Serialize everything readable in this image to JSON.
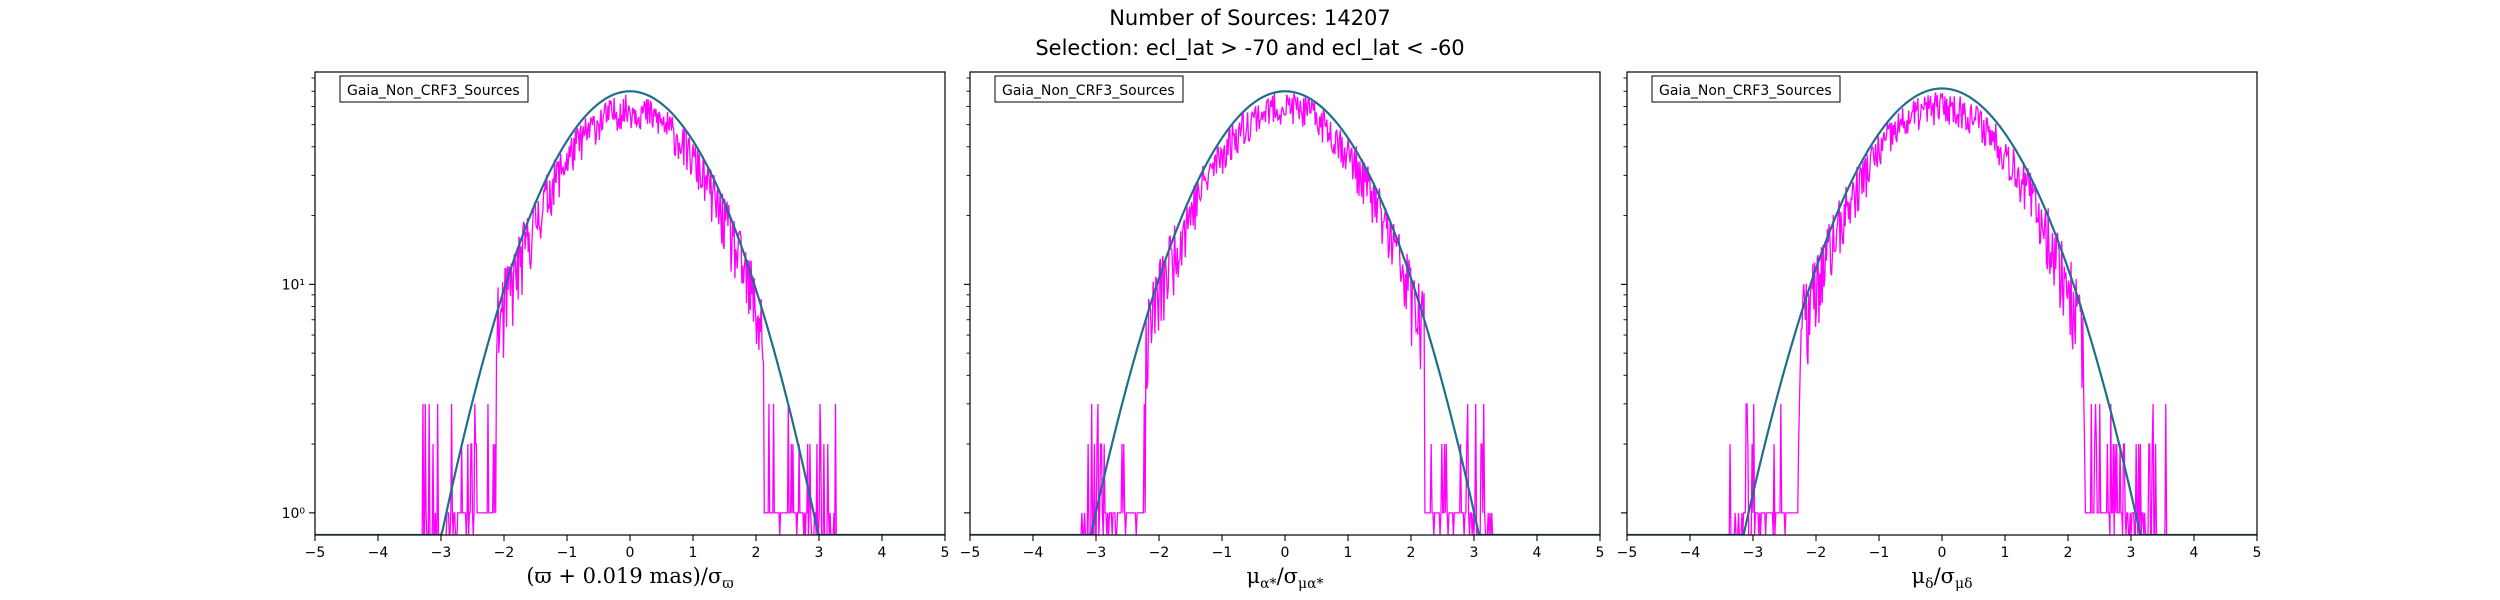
{
  "figure": {
    "title_line1": "Number of Sources: 14207",
    "title_line2": "Selection: ecl_lat > -70 and ecl_lat < -60"
  },
  "colors": {
    "histogram": "#ff00ff",
    "fit_curve": "#1f6f8b",
    "axes": "#000000",
    "background": "#ffffff"
  },
  "chart_data": [
    {
      "type": "histogram-line",
      "legend": "Gaia_Non_CRF3_Sources",
      "legend_position": "top-left",
      "xlabel_main": "(ϖ + 0.019 mas)/σ",
      "xlabel_sub": "ϖ",
      "xlim": [
        -5,
        5
      ],
      "ylim": [
        0.8,
        85
      ],
      "yscale": "log",
      "xticks": [
        -5,
        -4,
        -3,
        -2,
        -1,
        0,
        1,
        2,
        3,
        4,
        5
      ],
      "yticks": [
        {
          "value": 1,
          "label": "10⁰"
        },
        {
          "value": 10,
          "label": "10¹"
        }
      ],
      "fit": {
        "amplitude": 70,
        "mean": 0.0,
        "sigma": 1.0
      },
      "histogram": {
        "amplitude": 58,
        "mean": 0.0,
        "sigma": 1.0,
        "range": [
          -4.3,
          4.3
        ],
        "seed": 11
      }
    },
    {
      "type": "histogram-line",
      "legend": "Gaia_Non_CRF3_Sources",
      "legend_position": "top-left",
      "xlabel_main": "μ",
      "xlabel_sub": "α*",
      "xlabel_mid": "/σ",
      "xlabel_sub2": "μα*",
      "xlim": [
        -5,
        5
      ],
      "ylim": [
        0.8,
        85
      ],
      "yscale": "log",
      "xticks": [
        -5,
        -4,
        -3,
        -2,
        -1,
        0,
        1,
        2,
        3,
        4,
        5
      ],
      "yticks": [
        {
          "value": 1,
          "label": ""
        },
        {
          "value": 10,
          "label": ""
        }
      ],
      "fit": {
        "amplitude": 70,
        "mean": 0.0,
        "sigma": 1.03
      },
      "histogram": {
        "amplitude": 60,
        "mean": 0.0,
        "sigma": 1.03,
        "range": [
          -4.9,
          5.0
        ],
        "seed": 23
      }
    },
    {
      "type": "histogram-line",
      "legend": "Gaia_Non_CRF3_Sources",
      "legend_position": "top-left",
      "xlabel_main": "μ",
      "xlabel_sub": "δ",
      "xlabel_mid": "/σ",
      "xlabel_sub2": "μδ",
      "xlim": [
        -5,
        5
      ],
      "ylim": [
        0.8,
        85
      ],
      "yscale": "log",
      "xticks": [
        -5,
        -4,
        -3,
        -2,
        -1,
        0,
        1,
        2,
        3,
        4,
        5
      ],
      "yticks": [
        {
          "value": 1,
          "label": ""
        },
        {
          "value": 10,
          "label": ""
        }
      ],
      "fit": {
        "amplitude": 72,
        "mean": 0.0,
        "sigma": 1.05
      },
      "histogram": {
        "amplitude": 60,
        "mean": 0.0,
        "sigma": 1.05,
        "range": [
          -4.7,
          4.7
        ],
        "seed": 37
      }
    }
  ]
}
